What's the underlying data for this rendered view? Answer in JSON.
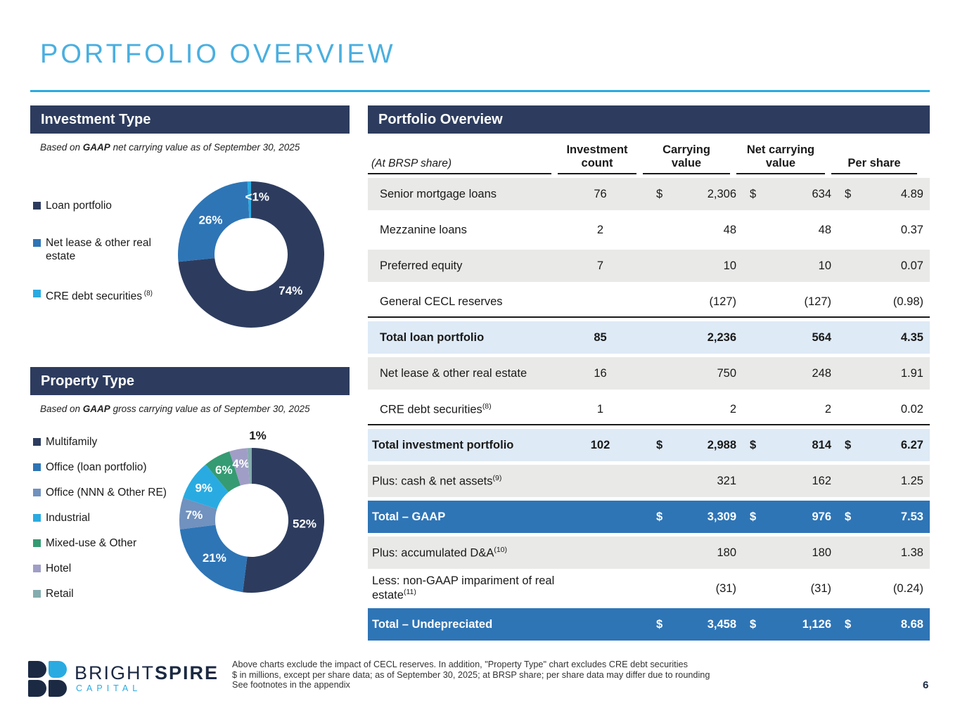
{
  "slide": {
    "title": "PORTFOLIO OVERVIEW",
    "page_number": "6",
    "accent_color": "#29ABE2",
    "navy_color": "#2D3C5E",
    "footnotes": [
      "Above charts exclude the impact of CECL reserves. In addition, \"Property Type\" chart excludes CRE debt securities",
      "$ in millions, except per share data; as of September 30, 2025; at BRSP share; per share data may differ due to rounding",
      "See footnotes in the appendix"
    ]
  },
  "logo": {
    "bright": "BRIGHT",
    "spire": "SPIRE",
    "capital": "CAPITAL"
  },
  "investment_type": {
    "header": "Investment Type",
    "subtitle_prefix": "Based on ",
    "subtitle_bold": "GAAP",
    "subtitle_rest": " net carrying value as of September 30, 2025"
  },
  "property_type": {
    "header": "Property Type",
    "subtitle_prefix": "Based on ",
    "subtitle_bold": "GAAP",
    "subtitle_rest": " gross carrying value as of September 30, 2025"
  },
  "chart_data": [
    {
      "type": "pie",
      "donut": true,
      "title": "Investment Type",
      "legend_position": "left",
      "slices": [
        {
          "label": "Loan portfolio",
          "value": 74,
          "display": "74%",
          "color": "#2D3C5E"
        },
        {
          "label": "Net lease & other real estate",
          "value": 26,
          "display": "26%",
          "color": "#2E75B6"
        },
        {
          "label": "CRE debt securities",
          "sup": "(8)",
          "value": 0.8,
          "display": "<1%",
          "color": "#29ABE2",
          "label_angle": 6
        }
      ]
    },
    {
      "type": "pie",
      "donut": true,
      "title": "Property Type",
      "legend_position": "left",
      "slices": [
        {
          "label": "Multifamily",
          "value": 52,
          "display": "52%",
          "color": "#2D3C5E"
        },
        {
          "label": "Office (loan portfolio)",
          "value": 21,
          "display": "21%",
          "color": "#2E75B6"
        },
        {
          "label": "Office (NNN & Other RE)",
          "value": 7,
          "display": "7%",
          "color": "#7191BE"
        },
        {
          "label": "Industrial",
          "value": 9,
          "display": "9%",
          "color": "#29ABE2"
        },
        {
          "label": "Mixed-use & Other",
          "value": 6,
          "display": "6%",
          "color": "#359B72"
        },
        {
          "label": "Hotel",
          "value": 4,
          "display": "4%",
          "color": "#A09EC6"
        },
        {
          "label": "Retail",
          "value": 1,
          "display": "1%",
          "color": "#84ACAE",
          "label_outside": true,
          "label_angle": 4
        }
      ]
    }
  ],
  "table": {
    "title": "Portfolio Overview",
    "corner_label": "(At BRSP share)",
    "columns": [
      {
        "l1": "Investment",
        "l2": "count"
      },
      {
        "l1": "Carrying",
        "l2": "value"
      },
      {
        "l1": "Net carrying",
        "l2": "value"
      },
      {
        "l1": "Per share",
        "l2": ""
      }
    ],
    "rows": [
      {
        "label": "Senior mortgage loans",
        "count": "76",
        "d1": "$",
        "carrying": "2,306",
        "d2": "$",
        "net": "634",
        "d3": "$",
        "per": "4.89",
        "style": "gray",
        "indent": true
      },
      {
        "label": "Mezzanine loans",
        "count": "2",
        "carrying": "48",
        "net": "48",
        "per": "0.37",
        "style": "white",
        "indent": true
      },
      {
        "label": "Preferred equity",
        "count": "7",
        "carrying": "10",
        "net": "10",
        "per": "0.07",
        "style": "gray",
        "indent": true
      },
      {
        "label": "General CECL reserves",
        "carrying": "(127)",
        "net": "(127)",
        "per": "(0.98)",
        "style": "white",
        "indent": true,
        "rule_below": true
      },
      {
        "label": "Total loan portfolio",
        "count": "85",
        "carrying": "2,236",
        "net": "564",
        "per": "4.35",
        "style": "lightblue",
        "bold": true,
        "indent": true
      },
      {
        "label": "Net lease & other real estate",
        "count": "16",
        "carrying": "750",
        "net": "248",
        "per": "1.91",
        "style": "gray",
        "indent": true
      },
      {
        "label": "CRE debt securities",
        "sup": "(8)",
        "count": "1",
        "carrying": "2",
        "net": "2",
        "per": "0.02",
        "style": "white",
        "indent": true,
        "rule_below": true
      },
      {
        "label": "Total investment portfolio",
        "count": "102",
        "d1": "$",
        "carrying": "2,988",
        "d2": "$",
        "net": "814",
        "d3": "$",
        "per": "6.27",
        "style": "lightblue",
        "bold": true
      },
      {
        "label": "Plus: cash & net assets",
        "sup": "(9)",
        "carrying": "321",
        "net": "162",
        "per": "1.25",
        "style": "gray"
      },
      {
        "label": "Total – GAAP",
        "d1": "$",
        "carrying": "3,309",
        "d2": "$",
        "net": "976",
        "d3": "$",
        "per": "7.53",
        "style": "blue",
        "bold": true
      },
      {
        "label": "Plus: accumulated D&A",
        "sup": "(10)",
        "carrying": "180",
        "net": "180",
        "per": "1.38",
        "style": "gray"
      },
      {
        "label": "Less: non-GAAP impariment of real estate",
        "sup": "(11)",
        "carrying": "(31)",
        "net": "(31)",
        "per": "(0.24)",
        "style": "white"
      },
      {
        "label": "Total – Undepreciated",
        "d1": "$",
        "carrying": "3,458",
        "d2": "$",
        "net": "1,126",
        "d3": "$",
        "per": "8.68",
        "style": "blue",
        "bold": true
      }
    ]
  }
}
